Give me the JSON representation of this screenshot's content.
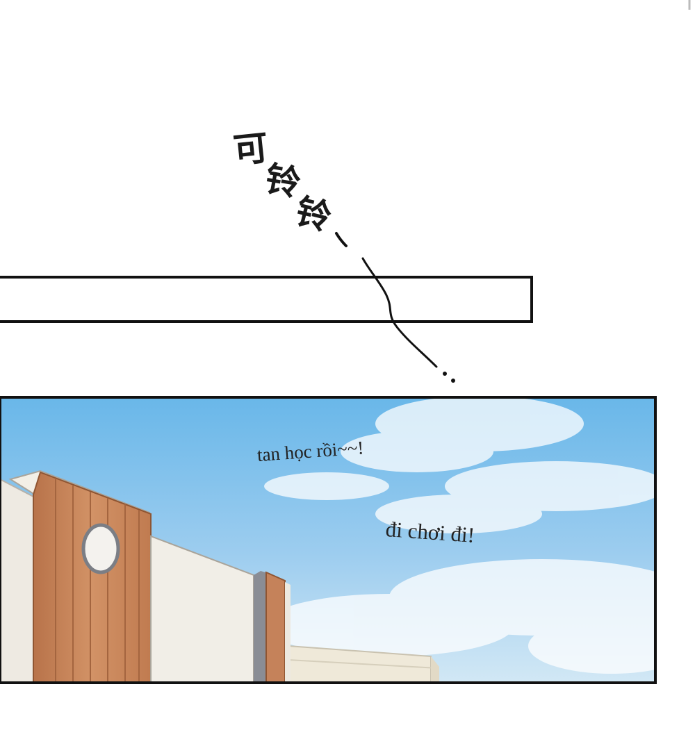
{
  "panel_2": {
    "dialogue_1": "tan học rồi~~!",
    "dialogue_2": "đi chơi đi!"
  },
  "sound_effect": {
    "chars": [
      "可",
      "铃",
      "铃"
    ]
  },
  "colors": {
    "sky_top": "#69b7e9",
    "sky_bottom": "#c8e2f3",
    "wood": "#c98658",
    "wall": "#eeeae2",
    "border": "#111111"
  }
}
